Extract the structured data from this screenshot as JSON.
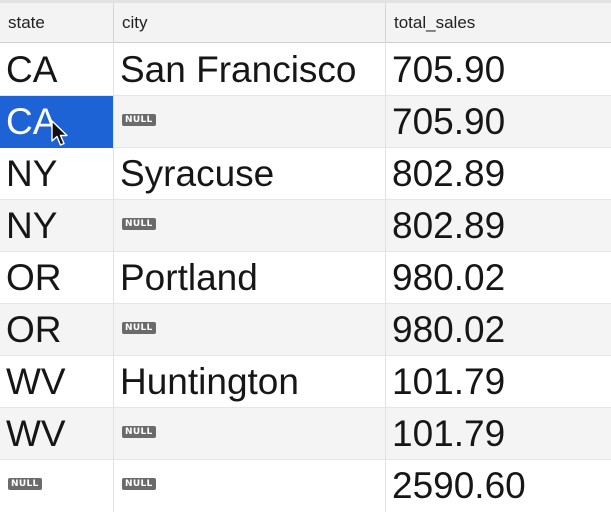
{
  "table": {
    "columns": [
      {
        "label": "state"
      },
      {
        "label": "city"
      },
      {
        "label": "total_sales"
      }
    ],
    "null_label": "NULL",
    "selected_cell": {
      "row": 1,
      "column": "state"
    },
    "rows": [
      {
        "state": "CA",
        "city": "San Francisco",
        "total_sales": "705.90"
      },
      {
        "state": "CA",
        "city": "NULL",
        "total_sales": "705.90"
      },
      {
        "state": "NY",
        "city": "Syracuse",
        "total_sales": "802.89"
      },
      {
        "state": "NY",
        "city": "NULL",
        "total_sales": "802.89"
      },
      {
        "state": "OR",
        "city": "Portland",
        "total_sales": "980.02"
      },
      {
        "state": "OR",
        "city": "NULL",
        "total_sales": "980.02"
      },
      {
        "state": "WV",
        "city": "Huntington",
        "total_sales": "101.79"
      },
      {
        "state": "WV",
        "city": "NULL",
        "total_sales": "101.79"
      },
      {
        "state": "NULL",
        "city": "NULL",
        "total_sales": "2590.60"
      }
    ]
  },
  "colors": {
    "selection": "#1e63d6",
    "null_badge": "#6b6b6b",
    "header_bg": "#f3f3f3",
    "alt_row_bg": "#f4f4f4"
  }
}
